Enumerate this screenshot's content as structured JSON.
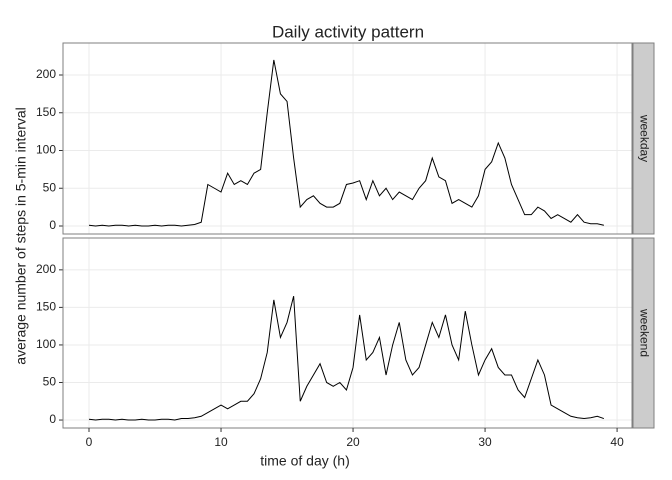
{
  "chart_data": {
    "type": "line",
    "title": "Daily activity pattern",
    "x_label": "time of day (h)",
    "y_label": "average number of steps in 5-min interval",
    "xlim": [
      -1.97,
      41.13
    ],
    "xticks": [
      0,
      10,
      20,
      30,
      40
    ],
    "ylim": [
      -10.6,
      242.4
    ],
    "yticks": [
      0,
      50,
      100,
      150,
      200
    ],
    "grid": true,
    "color": "#000000",
    "x": [
      0,
      0.5,
      1,
      1.5,
      2,
      2.5,
      3,
      3.5,
      4,
      4.5,
      5,
      5.5,
      6,
      6.5,
      7,
      7.5,
      8,
      8.5,
      9,
      9.5,
      10,
      10.5,
      11,
      11.5,
      12,
      12.5,
      13,
      13.5,
      14,
      14.5,
      15,
      15.5,
      16,
      16.5,
      17,
      17.5,
      18,
      18.5,
      19,
      19.5,
      20,
      20.5,
      21,
      21.5,
      22,
      22.5,
      23,
      23.5,
      24,
      24.5,
      25,
      25.5,
      26,
      26.5,
      27,
      27.5,
      28,
      28.5,
      29,
      29.5,
      30,
      30.5,
      31,
      31.5,
      32,
      32.5,
      33,
      33.5,
      34,
      34.5,
      35,
      35.5,
      36,
      36.5,
      37,
      37.5,
      38,
      38.5,
      39
    ],
    "panels": [
      {
        "label": "weekday",
        "values": [
          1,
          0,
          1,
          0,
          1,
          1,
          0,
          1,
          0,
          0,
          1,
          0,
          1,
          1,
          0,
          1,
          2,
          5,
          55,
          50,
          45,
          70,
          55,
          60,
          55,
          70,
          75,
          150,
          220,
          175,
          165,
          90,
          25,
          35,
          40,
          30,
          25,
          25,
          30,
          55,
          57,
          60,
          35,
          60,
          40,
          50,
          35,
          45,
          40,
          35,
          50,
          60,
          90,
          65,
          60,
          30,
          35,
          30,
          25,
          40,
          75,
          85,
          110,
          90,
          55,
          35,
          15,
          15,
          25,
          20,
          10,
          15,
          10,
          5,
          15,
          5,
          3,
          3,
          1
        ]
      },
      {
        "label": "weekend",
        "values": [
          1,
          0,
          1,
          1,
          0,
          1,
          0,
          0,
          1,
          0,
          0,
          1,
          1,
          0,
          2,
          2,
          3,
          5,
          10,
          15,
          20,
          15,
          20,
          25,
          25,
          35,
          55,
          90,
          160,
          110,
          130,
          165,
          25,
          45,
          60,
          75,
          50,
          45,
          50,
          40,
          70,
          140,
          80,
          90,
          110,
          60,
          100,
          130,
          80,
          60,
          70,
          100,
          130,
          110,
          140,
          100,
          80,
          145,
          100,
          60,
          80,
          95,
          70,
          60,
          60,
          40,
          30,
          55,
          80,
          60,
          20,
          15,
          10,
          5,
          3,
          2,
          3,
          5,
          2
        ]
      }
    ]
  }
}
